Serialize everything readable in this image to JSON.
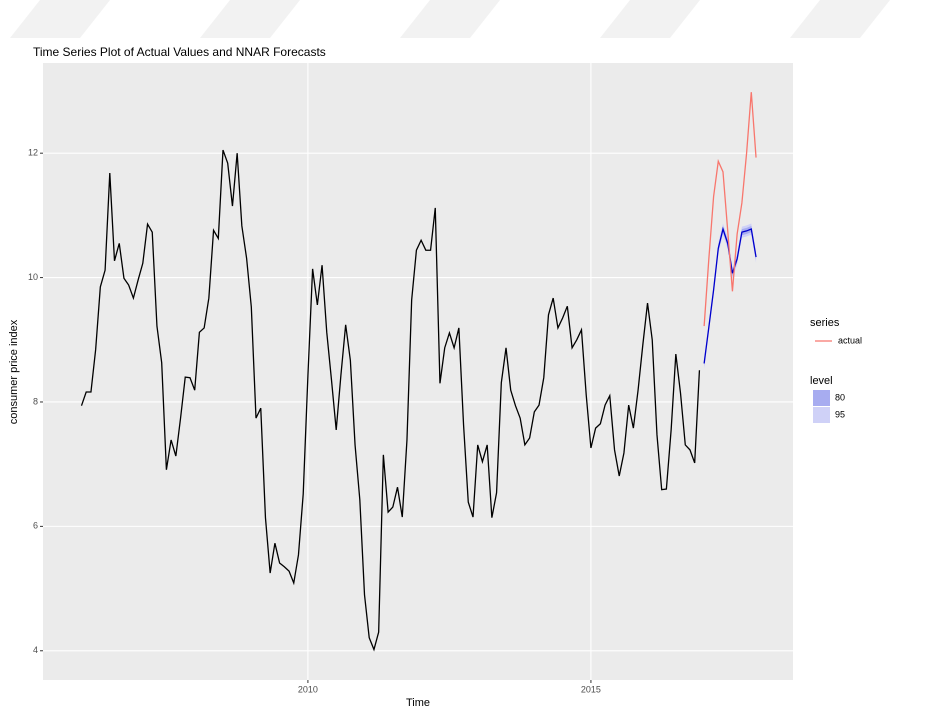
{
  "chart_data": {
    "type": "line",
    "title": "Time Series Plot of Actual Values and NNAR Forecasts",
    "x_label": "Time",
    "y_label": "consumer price index",
    "xlim": [
      2005.32,
      2018.57
    ],
    "ylim": [
      3.53,
      13.45
    ],
    "xticks": [
      2010,
      2015
    ],
    "yticks": [
      4,
      6,
      8,
      10,
      12
    ],
    "grid": true,
    "legend_title": "series",
    "band_legend_title": "level",
    "series": [
      {
        "color": "#000000",
        "x": [
          2006,
          2006.083,
          2006.167,
          2006.25,
          2006.333,
          2006.417,
          2006.5,
          2006.583,
          2006.667,
          2006.75,
          2006.833,
          2006.917,
          2007,
          2007.083,
          2007.167,
          2007.25,
          2007.333,
          2007.417,
          2007.5,
          2007.583,
          2007.667,
          2007.75,
          2007.833,
          2007.917,
          2008,
          2008.083,
          2008.167,
          2008.25,
          2008.333,
          2008.417,
          2008.5,
          2008.583,
          2008.667,
          2008.75,
          2008.833,
          2008.917,
          2009,
          2009.083,
          2009.167,
          2009.25,
          2009.333,
          2009.417,
          2009.5,
          2009.583,
          2009.667,
          2009.75,
          2009.833,
          2009.917,
          2010,
          2010.083,
          2010.167,
          2010.25,
          2010.333,
          2010.417,
          2010.5,
          2010.583,
          2010.667,
          2010.75,
          2010.833,
          2010.917,
          2011,
          2011.083,
          2011.167,
          2011.25,
          2011.333,
          2011.417,
          2011.5,
          2011.583,
          2011.667,
          2011.75,
          2011.833,
          2011.917,
          2012,
          2012.083,
          2012.167,
          2012.25,
          2012.333,
          2012.417,
          2012.5,
          2012.583,
          2012.667,
          2012.75,
          2012.833,
          2012.917,
          2013,
          2013.083,
          2013.167,
          2013.25,
          2013.333,
          2013.417,
          2013.5,
          2013.583,
          2013.667,
          2013.75,
          2013.833,
          2013.917,
          2014,
          2014.083,
          2014.167,
          2014.25,
          2014.333,
          2014.417,
          2014.5,
          2014.583,
          2014.667,
          2014.75,
          2014.833,
          2014.917,
          2015,
          2015.083,
          2015.167,
          2015.25,
          2015.333,
          2015.417,
          2015.5,
          2015.583,
          2015.667,
          2015.75,
          2015.833,
          2015.917,
          2016,
          2016.083,
          2016.167,
          2016.25,
          2016.333,
          2016.417,
          2016.5,
          2016.583,
          2016.667,
          2016.75,
          2016.833,
          2016.917
        ],
        "values": [
          7.94,
          8.16,
          8.16,
          8.84,
          9.85,
          10.12,
          11.68,
          10.27,
          10.55,
          9.99,
          9.88,
          9.67,
          9.96,
          10.23,
          10.86,
          10.73,
          9.22,
          8.63,
          6.91,
          7.39,
          7.13,
          7.74,
          8.4,
          8.39,
          8.19,
          9.12,
          9.19,
          9.67,
          10.76,
          10.63,
          12.05,
          11.84,
          11.15,
          12.0,
          10.83,
          10.31,
          9.53,
          7.74,
          7.9,
          6.14,
          5.25,
          5.73,
          5.41,
          5.35,
          5.28,
          5.09,
          5.54,
          6.52,
          8.42,
          10.14,
          9.56,
          10.2,
          9.12,
          8.35,
          7.55,
          8.43,
          9.24,
          8.67,
          7.31,
          6.43,
          4.9,
          4.21,
          4.02,
          4.3,
          7.15,
          6.23,
          6.31,
          6.63,
          6.15,
          7.39,
          9.64,
          10.44,
          10.6,
          10.44,
          10.44,
          11.12,
          8.3,
          8.87,
          9.11,
          8.87,
          9.19,
          7.63,
          6.39,
          6.15,
          7.31,
          7.04,
          7.31,
          6.14,
          6.54,
          8.31,
          8.87,
          8.19,
          7.94,
          7.74,
          7.31,
          7.42,
          7.84,
          7.95,
          8.39,
          9.4,
          9.67,
          9.19,
          9.35,
          9.54,
          8.87,
          9.0,
          9.16,
          8.11,
          7.26,
          7.58,
          7.65,
          7.95,
          8.1,
          7.23,
          6.81,
          7.18,
          7.95,
          7.58,
          8.19,
          8.92,
          9.59,
          9.0,
          7.47,
          6.59,
          6.6,
          7.55,
          8.77,
          8.14,
          7.31,
          7.23,
          7.02,
          8.51
        ]
      },
      {
        "color": "#0000cc",
        "x": [
          2017,
          2017.083,
          2017.167,
          2017.25,
          2017.333,
          2017.417,
          2017.5,
          2017.583,
          2017.667,
          2017.75,
          2017.833,
          2017.917
        ],
        "values": [
          8.62,
          9.2,
          9.8,
          10.47,
          10.78,
          10.55,
          10.07,
          10.3,
          10.73,
          10.75,
          10.78,
          10.33
        ]
      },
      {
        "name": "actual",
        "color": "#f8766d",
        "x": [
          2017,
          2017.083,
          2017.167,
          2017.25,
          2017.333,
          2017.417,
          2017.5,
          2017.583,
          2017.667,
          2017.75,
          2017.833,
          2017.917
        ],
        "values": [
          9.22,
          10.3,
          11.3,
          11.87,
          11.7,
          10.75,
          9.78,
          10.7,
          11.2,
          12.0,
          12.98,
          11.93
        ]
      }
    ],
    "bands": [
      {
        "name": "80",
        "color": "#a7acf0",
        "x": [
          2017,
          2017.083,
          2017.167,
          2017.25,
          2017.333,
          2017.417,
          2017.5,
          2017.583,
          2017.667,
          2017.75,
          2017.833,
          2017.917
        ],
        "lower": [
          8.57,
          9.15,
          9.75,
          10.42,
          10.73,
          10.5,
          10.02,
          10.25,
          10.68,
          10.7,
          10.73,
          10.28
        ],
        "upper": [
          8.67,
          9.25,
          9.85,
          10.52,
          10.83,
          10.6,
          10.12,
          10.35,
          10.78,
          10.8,
          10.83,
          10.38
        ]
      },
      {
        "name": "95",
        "color": "#cfd1f7",
        "x": [
          2017,
          2017.083,
          2017.167,
          2017.25,
          2017.333,
          2017.417,
          2017.5,
          2017.583,
          2017.667,
          2017.75,
          2017.833,
          2017.917
        ],
        "lower": [
          8.53,
          9.11,
          9.71,
          10.38,
          10.69,
          10.46,
          9.98,
          10.21,
          10.64,
          10.66,
          10.69,
          10.24
        ],
        "upper": [
          8.71,
          9.29,
          9.89,
          10.56,
          10.87,
          10.64,
          10.16,
          10.39,
          10.82,
          10.84,
          10.87,
          10.42
        ]
      }
    ]
  }
}
